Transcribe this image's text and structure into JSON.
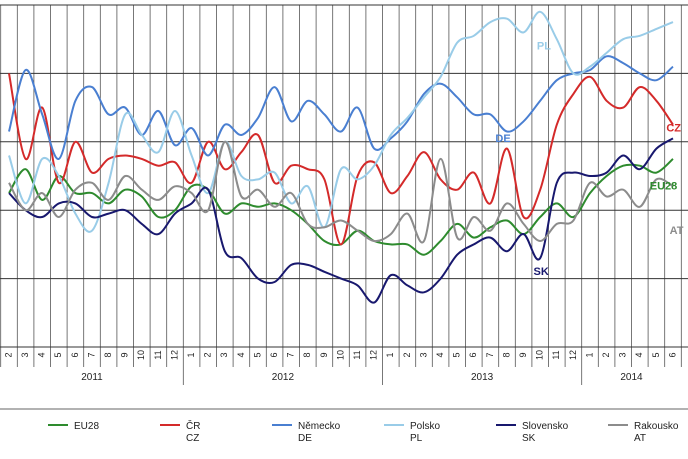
{
  "chart_data": {
    "type": "line",
    "title": "",
    "xlabel": "",
    "ylabel": "",
    "ylim": [
      0,
      10
    ],
    "grid": true,
    "legend_placement": "bottom",
    "month_ticks": [
      "2",
      "3",
      "4",
      "5",
      "6",
      "7",
      "8",
      "9",
      "10",
      "11",
      "12",
      "1",
      "2",
      "3",
      "4",
      "5",
      "6",
      "7",
      "8",
      "9",
      "10",
      "11",
      "12",
      "1",
      "2",
      "3",
      "4",
      "5",
      "6",
      "7",
      "8",
      "9",
      "10",
      "11",
      "12",
      "1",
      "2",
      "3",
      "4",
      "5",
      "6"
    ],
    "years": [
      {
        "label": "2011",
        "start": 0,
        "end": 10
      },
      {
        "label": "2012",
        "start": 11,
        "end": 22
      },
      {
        "label": "2013",
        "start": 23,
        "end": 34
      },
      {
        "label": "2014",
        "start": 35,
        "end": 40
      }
    ],
    "series": [
      {
        "name": "EU28",
        "legend_lines": [
          "EU28"
        ],
        "color": "#2e8b2e",
        "label": "EU28",
        "label_at": 38.6,
        "label_y": 4.6,
        "values": [
          4.5,
          5.2,
          4.3,
          5.0,
          4.5,
          4.5,
          4.2,
          4.6,
          4.4,
          3.8,
          4.0,
          4.7,
          4.6,
          3.9,
          4.2,
          4.1,
          4.2,
          4.0,
          3.6,
          3.1,
          3.0,
          3.4,
          3.1,
          3.0,
          3.0,
          2.7,
          3.1,
          3.6,
          3.2,
          3.5,
          3.7,
          3.3,
          3.8,
          4.2,
          3.8,
          4.5,
          5.0,
          5.3,
          5.3,
          5.1,
          5.5
        ]
      },
      {
        "name": "ČR",
        "legend_lines": [
          "ČR",
          "CZ"
        ],
        "color": "#d42a2a",
        "label": "CZ",
        "label_at": 39.6,
        "label_y": 6.3,
        "values": [
          8.0,
          5.5,
          7.0,
          4.8,
          6.0,
          5.1,
          5.5,
          5.6,
          5.5,
          5.3,
          5.4,
          4.8,
          6.0,
          5.2,
          5.7,
          6.2,
          4.8,
          5.3,
          5.2,
          4.9,
          3.0,
          5.0,
          5.4,
          4.5,
          5.0,
          5.7,
          4.9,
          4.6,
          5.1,
          4.2,
          5.8,
          3.8,
          4.6,
          6.5,
          7.4,
          7.9,
          7.2,
          7.0,
          7.6,
          7.2,
          6.5
        ]
      },
      {
        "name": "Německo",
        "legend_lines": [
          "Německo",
          "DE"
        ],
        "color": "#4a7fd1",
        "label": "DE",
        "label_at": 29.3,
        "label_y": 6.0,
        "values": [
          6.3,
          8.1,
          6.8,
          5.5,
          7.2,
          7.6,
          6.8,
          7.0,
          6.2,
          6.9,
          5.9,
          6.4,
          5.6,
          6.5,
          6.2,
          6.7,
          7.6,
          6.6,
          7.2,
          6.8,
          6.3,
          7.0,
          5.8,
          6.1,
          6.6,
          7.4,
          7.7,
          7.3,
          6.8,
          6.8,
          6.3,
          6.6,
          7.2,
          7.8,
          8.0,
          8.1,
          8.5,
          8.3,
          8.0,
          7.8,
          8.2
        ]
      },
      {
        "name": "Polsko",
        "legend_lines": [
          "Polsko",
          "PL"
        ],
        "color": "#99cce8",
        "label": "PL",
        "label_at": 31.8,
        "label_y": 8.7,
        "values": [
          5.6,
          4.2,
          5.5,
          5.0,
          3.9,
          3.4,
          4.8,
          6.8,
          6.2,
          5.7,
          6.9,
          5.6,
          4.5,
          6.0,
          5.0,
          4.9,
          5.1,
          4.2,
          4.7,
          3.5,
          5.2,
          4.9,
          5.3,
          6.2,
          6.7,
          7.3,
          7.9,
          8.9,
          9.1,
          9.5,
          9.6,
          9.2,
          9.8,
          9.0,
          8.0,
          8.2,
          8.6,
          9.0,
          9.1,
          9.3,
          9.5
        ]
      },
      {
        "name": "Slovensko",
        "legend_lines": [
          "Slovensko",
          "SK"
        ],
        "color": "#18186e",
        "label": "SK",
        "label_at": 31.6,
        "label_y": 2.1,
        "values": [
          4.5,
          4.0,
          3.8,
          4.2,
          4.2,
          3.8,
          3.9,
          4.0,
          3.6,
          3.3,
          3.9,
          4.2,
          4.6,
          2.8,
          2.6,
          2.0,
          1.9,
          2.4,
          2.4,
          2.2,
          2.0,
          1.8,
          1.3,
          2.1,
          1.8,
          1.6,
          2.0,
          2.7,
          3.0,
          3.2,
          2.8,
          3.3,
          2.6,
          4.8,
          5.1,
          5.0,
          5.1,
          5.6,
          5.2,
          5.8,
          6.1
        ]
      },
      {
        "name": "Rakousko",
        "legend_lines": [
          "Rakousko",
          "AT"
        ],
        "color": "#8c8c8c",
        "label": "AT",
        "label_at": 39.8,
        "label_y": 3.3,
        "values": [
          4.8,
          4.0,
          4.5,
          3.8,
          4.6,
          4.8,
          4.3,
          5.0,
          4.6,
          4.3,
          4.7,
          4.5,
          4.0,
          6.0,
          4.4,
          4.6,
          4.1,
          4.5,
          3.6,
          3.5,
          3.7,
          3.4,
          3.1,
          3.3,
          3.9,
          3.1,
          5.5,
          3.2,
          3.8,
          3.4,
          4.2,
          3.6,
          3.1,
          3.6,
          3.7,
          4.8,
          4.4,
          4.6,
          4.1,
          4.9,
          4.7
        ]
      }
    ]
  }
}
